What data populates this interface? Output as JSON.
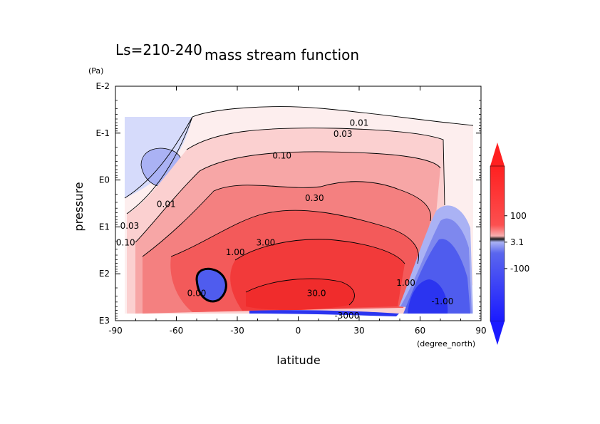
{
  "chart_data": {
    "type": "heatmap",
    "subtitle": "Ls=210-240",
    "title": "mass stream function",
    "xlabel": "latitude",
    "xunit": "(degree_north)",
    "ylabel": "pressure",
    "yunit": "(Pa)",
    "x_ticks": [
      "-90",
      "-60",
      "-30",
      "0",
      "30",
      "60",
      "90"
    ],
    "x_values": [
      -90,
      -60,
      -30,
      0,
      30,
      60,
      90
    ],
    "y_ticks": [
      "E-2",
      "E-1",
      "E0",
      "E1",
      "E2",
      "E3"
    ],
    "y_values": [
      0.01,
      0.1,
      1,
      10,
      100,
      1000
    ],
    "xlim": [
      -90,
      90
    ],
    "ylim": [
      0.01,
      1000
    ],
    "y_scale": "log",
    "y_reversed": true,
    "contour_labels": [
      {
        "text": "0.01",
        "x": 30,
        "y": 0.07
      },
      {
        "text": "0.03",
        "x": 22,
        "y": 0.12
      },
      {
        "text": "0.10",
        "x": -8,
        "y": 0.35
      },
      {
        "text": "0.30",
        "x": 8,
        "y": 2.8
      },
      {
        "text": "0.01",
        "x": -65,
        "y": 3.8
      },
      {
        "text": "0.03",
        "x": -83,
        "y": 11
      },
      {
        "text": "0.10",
        "x": -85,
        "y": 25
      },
      {
        "text": "1.00",
        "x": -31,
        "y": 40
      },
      {
        "text": "3.00",
        "x": -16,
        "y": 25
      },
      {
        "text": "30.0",
        "x": 9,
        "y": 300
      },
      {
        "text": "1.00",
        "x": 53,
        "y": 180
      },
      {
        "text": "-1.00",
        "x": 71,
        "y": 450
      },
      {
        "text": "0.00",
        "x": -50,
        "y": 300
      },
      {
        "text": "-3000",
        "x": 24,
        "y": 900
      }
    ],
    "colorbar": {
      "ticks": [
        "100",
        "3.1",
        "-100"
      ],
      "tick_values": [
        100,
        3.1,
        -100
      ],
      "positive_color": "#ff2a2a",
      "negative_color": "#1f1fff"
    },
    "colors": {
      "pos_levels": [
        "#fdeeee",
        "#fbd0d0",
        "#f7a6a6",
        "#f48080",
        "#f35a5a",
        "#f23a3a",
        "#f02c2c"
      ],
      "neg_levels": [
        "#d6dbfb",
        "#aab2f4",
        "#7e88ee",
        "#4f5cee",
        "#2b34f0"
      ]
    }
  }
}
